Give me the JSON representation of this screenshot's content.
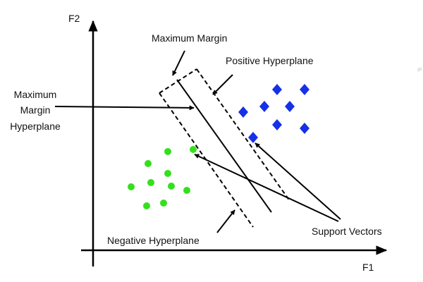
{
  "labels": {
    "axis_x": "F1",
    "axis_y": "F2",
    "maximum_margin": "Maximum Margin",
    "positive_hyperplane": "Positive Hyperplane",
    "max_margin_hyperplane": [
      "Maximum",
      "Margin",
      "Hyperplane"
    ],
    "negative_hyperplane": "Negative Hyperplane",
    "support_vectors": "Support Vectors",
    "corner_text": "gli"
  },
  "classes": {
    "positive": {
      "marker": "diamond",
      "color": "#1630e8",
      "count": 9
    },
    "negative": {
      "marker": "circle",
      "color": "#33e01c",
      "count": 11
    }
  },
  "lines": {
    "max_margin_hyperplane": "solid",
    "positive_hyperplane": "dashed",
    "negative_hyperplane": "dashed",
    "margin_bracket": "dashed"
  }
}
